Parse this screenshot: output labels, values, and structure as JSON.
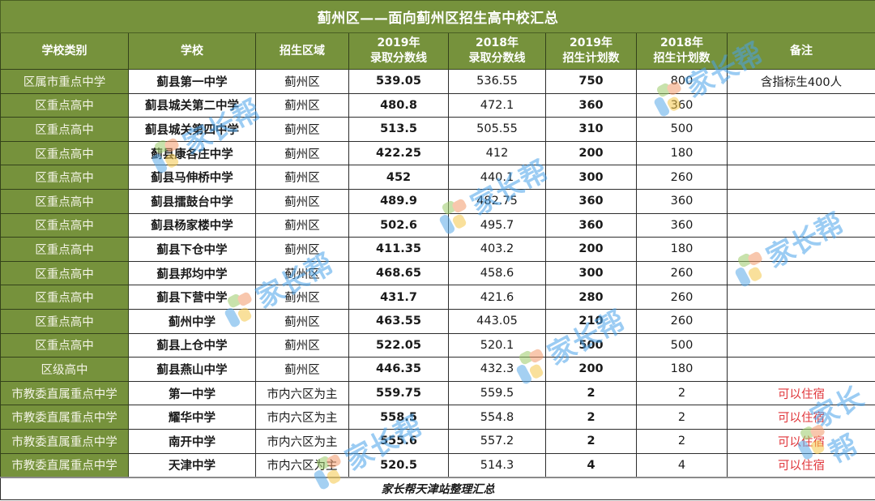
{
  "title": "蓟州区——面向蓟州区招生高中校汇总",
  "columns": [
    {
      "line1": "学校类别",
      "line2": ""
    },
    {
      "line1": "学校",
      "line2": ""
    },
    {
      "line1": "招生区域",
      "line2": ""
    },
    {
      "line1": "2019年",
      "line2": "录取分数线"
    },
    {
      "line1": "2018年",
      "line2": "录取分数线"
    },
    {
      "line1": "2019年",
      "line2": "招生计划数"
    },
    {
      "line1": "2018年",
      "line2": "招生计划数"
    },
    {
      "line1": "备注",
      "line2": ""
    }
  ],
  "rows": [
    {
      "category": "区属市重点中学",
      "school": "蓟县第一中学",
      "area": "蓟州区",
      "score_2019": "539.05",
      "score_2018": "536.55",
      "plan_2019": "750",
      "plan_2018": "800",
      "note": "含指标生400人"
    },
    {
      "category": "区重点高中",
      "school": "蓟县城关第二中学",
      "area": "蓟州区",
      "score_2019": "480.8",
      "score_2018": "472.1",
      "plan_2019": "360",
      "plan_2018": "360",
      "note": ""
    },
    {
      "category": "区重点高中",
      "school": "蓟县城关第四中学",
      "area": "蓟州区",
      "score_2019": "513.5",
      "score_2018": "505.55",
      "plan_2019": "310",
      "plan_2018": "500",
      "note": ""
    },
    {
      "category": "区重点高中",
      "school": "蓟县康各庄中学",
      "area": "蓟州区",
      "score_2019": "422.25",
      "score_2018": "412",
      "plan_2019": "200",
      "plan_2018": "180",
      "note": ""
    },
    {
      "category": "区重点高中",
      "school": "蓟县马伸桥中学",
      "area": "蓟州区",
      "score_2019": "452",
      "score_2018": "440.1",
      "plan_2019": "300",
      "plan_2018": "260",
      "note": ""
    },
    {
      "category": "区重点高中",
      "school": "蓟县擂鼓台中学",
      "area": "蓟州区",
      "score_2019": "489.9",
      "score_2018": "482.75",
      "plan_2019": "360",
      "plan_2018": "360",
      "note": ""
    },
    {
      "category": "区重点高中",
      "school": "蓟县杨家楼中学",
      "area": "蓟州区",
      "score_2019": "502.6",
      "score_2018": "495.7",
      "plan_2019": "360",
      "plan_2018": "360",
      "note": ""
    },
    {
      "category": "区重点高中",
      "school": "蓟县下仓中学",
      "area": "蓟州区",
      "score_2019": "411.35",
      "score_2018": "403.2",
      "plan_2019": "200",
      "plan_2018": "180",
      "note": ""
    },
    {
      "category": "区重点高中",
      "school": "蓟县邦均中学",
      "area": "蓟州区",
      "score_2019": "468.65",
      "score_2018": "458.6",
      "plan_2019": "300",
      "plan_2018": "260",
      "note": ""
    },
    {
      "category": "区重点高中",
      "school": "蓟县下营中学",
      "area": "蓟州区",
      "score_2019": "431.7",
      "score_2018": "421.6",
      "plan_2019": "280",
      "plan_2018": "260",
      "note": ""
    },
    {
      "category": "区重点高中",
      "school": "蓟州中学",
      "area": "蓟州区",
      "score_2019": "463.55",
      "score_2018": "443.05",
      "plan_2019": "210",
      "plan_2018": "260",
      "note": ""
    },
    {
      "category": "区重点高中",
      "school": "蓟县上仓中学",
      "area": "蓟州区",
      "score_2019": "522.05",
      "score_2018": "520.1",
      "plan_2019": "500",
      "plan_2018": "500",
      "note": ""
    },
    {
      "category": "区级高中",
      "school": "蓟县燕山中学",
      "area": "蓟州区",
      "score_2019": "446.35",
      "score_2018": "432.3",
      "plan_2019": "200",
      "plan_2018": "180",
      "note": ""
    },
    {
      "category": "市教委直属重点中学",
      "school": "第一中学",
      "area": "市内六区为主",
      "score_2019": "559.75",
      "score_2018": "559.5",
      "plan_2019": "2",
      "plan_2018": "2",
      "note": "可以住宿"
    },
    {
      "category": "市教委直属重点中学",
      "school": "耀华中学",
      "area": "市内六区为主",
      "score_2019": "558.5",
      "score_2018": "554.8",
      "plan_2019": "2",
      "plan_2018": "2",
      "note": "可以住宿"
    },
    {
      "category": "市教委直属重点中学",
      "school": "南开中学",
      "area": "市内六区为主",
      "score_2019": "555.6",
      "score_2018": "557.2",
      "plan_2019": "2",
      "plan_2018": "2",
      "note": "可以住宿"
    },
    {
      "category": "市教委直属重点中学",
      "school": "天津中学",
      "area": "市内六区为主",
      "score_2019": "520.5",
      "score_2018": "514.3",
      "plan_2019": "4",
      "plan_2018": "4",
      "note": "可以住宿"
    }
  ],
  "footer": "家长帮天津站整理汇总",
  "watermark": {
    "text": "家长帮",
    "icon": "jiazhangbang-logo-icon"
  },
  "colors": {
    "header_bg": "#76923c",
    "header_text": "#ffffff",
    "note_red": "#e0363b",
    "watermark_blue": "#4aa3ea"
  }
}
